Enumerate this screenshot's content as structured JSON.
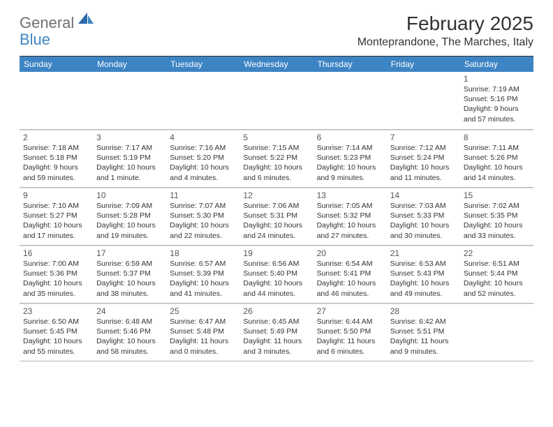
{
  "logo": {
    "word1": "General",
    "word2": "Blue"
  },
  "title": "February 2025",
  "location": "Monteprandone, The Marches, Italy",
  "colors": {
    "header_bar": "#3d84c4",
    "header_text": "#ffffff",
    "logo_gray": "#6f6f6f",
    "logo_blue": "#3d84c4",
    "text": "#333333",
    "daynum": "#555555",
    "grid_line": "#b7b7b7",
    "background": "#ffffff"
  },
  "day_headers": [
    "Sunday",
    "Monday",
    "Tuesday",
    "Wednesday",
    "Thursday",
    "Friday",
    "Saturday"
  ],
  "weeks": [
    [
      null,
      null,
      null,
      null,
      null,
      null,
      {
        "n": "1",
        "sunrise": "Sunrise: 7:19 AM",
        "sunset": "Sunset: 5:16 PM",
        "day1": "Daylight: 9 hours",
        "day2": "and 57 minutes."
      }
    ],
    [
      {
        "n": "2",
        "sunrise": "Sunrise: 7:18 AM",
        "sunset": "Sunset: 5:18 PM",
        "day1": "Daylight: 9 hours",
        "day2": "and 59 minutes."
      },
      {
        "n": "3",
        "sunrise": "Sunrise: 7:17 AM",
        "sunset": "Sunset: 5:19 PM",
        "day1": "Daylight: 10 hours",
        "day2": "and 1 minute."
      },
      {
        "n": "4",
        "sunrise": "Sunrise: 7:16 AM",
        "sunset": "Sunset: 5:20 PM",
        "day1": "Daylight: 10 hours",
        "day2": "and 4 minutes."
      },
      {
        "n": "5",
        "sunrise": "Sunrise: 7:15 AM",
        "sunset": "Sunset: 5:22 PM",
        "day1": "Daylight: 10 hours",
        "day2": "and 6 minutes."
      },
      {
        "n": "6",
        "sunrise": "Sunrise: 7:14 AM",
        "sunset": "Sunset: 5:23 PM",
        "day1": "Daylight: 10 hours",
        "day2": "and 9 minutes."
      },
      {
        "n": "7",
        "sunrise": "Sunrise: 7:12 AM",
        "sunset": "Sunset: 5:24 PM",
        "day1": "Daylight: 10 hours",
        "day2": "and 11 minutes."
      },
      {
        "n": "8",
        "sunrise": "Sunrise: 7:11 AM",
        "sunset": "Sunset: 5:26 PM",
        "day1": "Daylight: 10 hours",
        "day2": "and 14 minutes."
      }
    ],
    [
      {
        "n": "9",
        "sunrise": "Sunrise: 7:10 AM",
        "sunset": "Sunset: 5:27 PM",
        "day1": "Daylight: 10 hours",
        "day2": "and 17 minutes."
      },
      {
        "n": "10",
        "sunrise": "Sunrise: 7:09 AM",
        "sunset": "Sunset: 5:28 PM",
        "day1": "Daylight: 10 hours",
        "day2": "and 19 minutes."
      },
      {
        "n": "11",
        "sunrise": "Sunrise: 7:07 AM",
        "sunset": "Sunset: 5:30 PM",
        "day1": "Daylight: 10 hours",
        "day2": "and 22 minutes."
      },
      {
        "n": "12",
        "sunrise": "Sunrise: 7:06 AM",
        "sunset": "Sunset: 5:31 PM",
        "day1": "Daylight: 10 hours",
        "day2": "and 24 minutes."
      },
      {
        "n": "13",
        "sunrise": "Sunrise: 7:05 AM",
        "sunset": "Sunset: 5:32 PM",
        "day1": "Daylight: 10 hours",
        "day2": "and 27 minutes."
      },
      {
        "n": "14",
        "sunrise": "Sunrise: 7:03 AM",
        "sunset": "Sunset: 5:33 PM",
        "day1": "Daylight: 10 hours",
        "day2": "and 30 minutes."
      },
      {
        "n": "15",
        "sunrise": "Sunrise: 7:02 AM",
        "sunset": "Sunset: 5:35 PM",
        "day1": "Daylight: 10 hours",
        "day2": "and 33 minutes."
      }
    ],
    [
      {
        "n": "16",
        "sunrise": "Sunrise: 7:00 AM",
        "sunset": "Sunset: 5:36 PM",
        "day1": "Daylight: 10 hours",
        "day2": "and 35 minutes."
      },
      {
        "n": "17",
        "sunrise": "Sunrise: 6:59 AM",
        "sunset": "Sunset: 5:37 PM",
        "day1": "Daylight: 10 hours",
        "day2": "and 38 minutes."
      },
      {
        "n": "18",
        "sunrise": "Sunrise: 6:57 AM",
        "sunset": "Sunset: 5:39 PM",
        "day1": "Daylight: 10 hours",
        "day2": "and 41 minutes."
      },
      {
        "n": "19",
        "sunrise": "Sunrise: 6:56 AM",
        "sunset": "Sunset: 5:40 PM",
        "day1": "Daylight: 10 hours",
        "day2": "and 44 minutes."
      },
      {
        "n": "20",
        "sunrise": "Sunrise: 6:54 AM",
        "sunset": "Sunset: 5:41 PM",
        "day1": "Daylight: 10 hours",
        "day2": "and 46 minutes."
      },
      {
        "n": "21",
        "sunrise": "Sunrise: 6:53 AM",
        "sunset": "Sunset: 5:43 PM",
        "day1": "Daylight: 10 hours",
        "day2": "and 49 minutes."
      },
      {
        "n": "22",
        "sunrise": "Sunrise: 6:51 AM",
        "sunset": "Sunset: 5:44 PM",
        "day1": "Daylight: 10 hours",
        "day2": "and 52 minutes."
      }
    ],
    [
      {
        "n": "23",
        "sunrise": "Sunrise: 6:50 AM",
        "sunset": "Sunset: 5:45 PM",
        "day1": "Daylight: 10 hours",
        "day2": "and 55 minutes."
      },
      {
        "n": "24",
        "sunrise": "Sunrise: 6:48 AM",
        "sunset": "Sunset: 5:46 PM",
        "day1": "Daylight: 10 hours",
        "day2": "and 58 minutes."
      },
      {
        "n": "25",
        "sunrise": "Sunrise: 6:47 AM",
        "sunset": "Sunset: 5:48 PM",
        "day1": "Daylight: 11 hours",
        "day2": "and 0 minutes."
      },
      {
        "n": "26",
        "sunrise": "Sunrise: 6:45 AM",
        "sunset": "Sunset: 5:49 PM",
        "day1": "Daylight: 11 hours",
        "day2": "and 3 minutes."
      },
      {
        "n": "27",
        "sunrise": "Sunrise: 6:44 AM",
        "sunset": "Sunset: 5:50 PM",
        "day1": "Daylight: 11 hours",
        "day2": "and 6 minutes."
      },
      {
        "n": "28",
        "sunrise": "Sunrise: 6:42 AM",
        "sunset": "Sunset: 5:51 PM",
        "day1": "Daylight: 11 hours",
        "day2": "and 9 minutes."
      },
      null
    ]
  ]
}
